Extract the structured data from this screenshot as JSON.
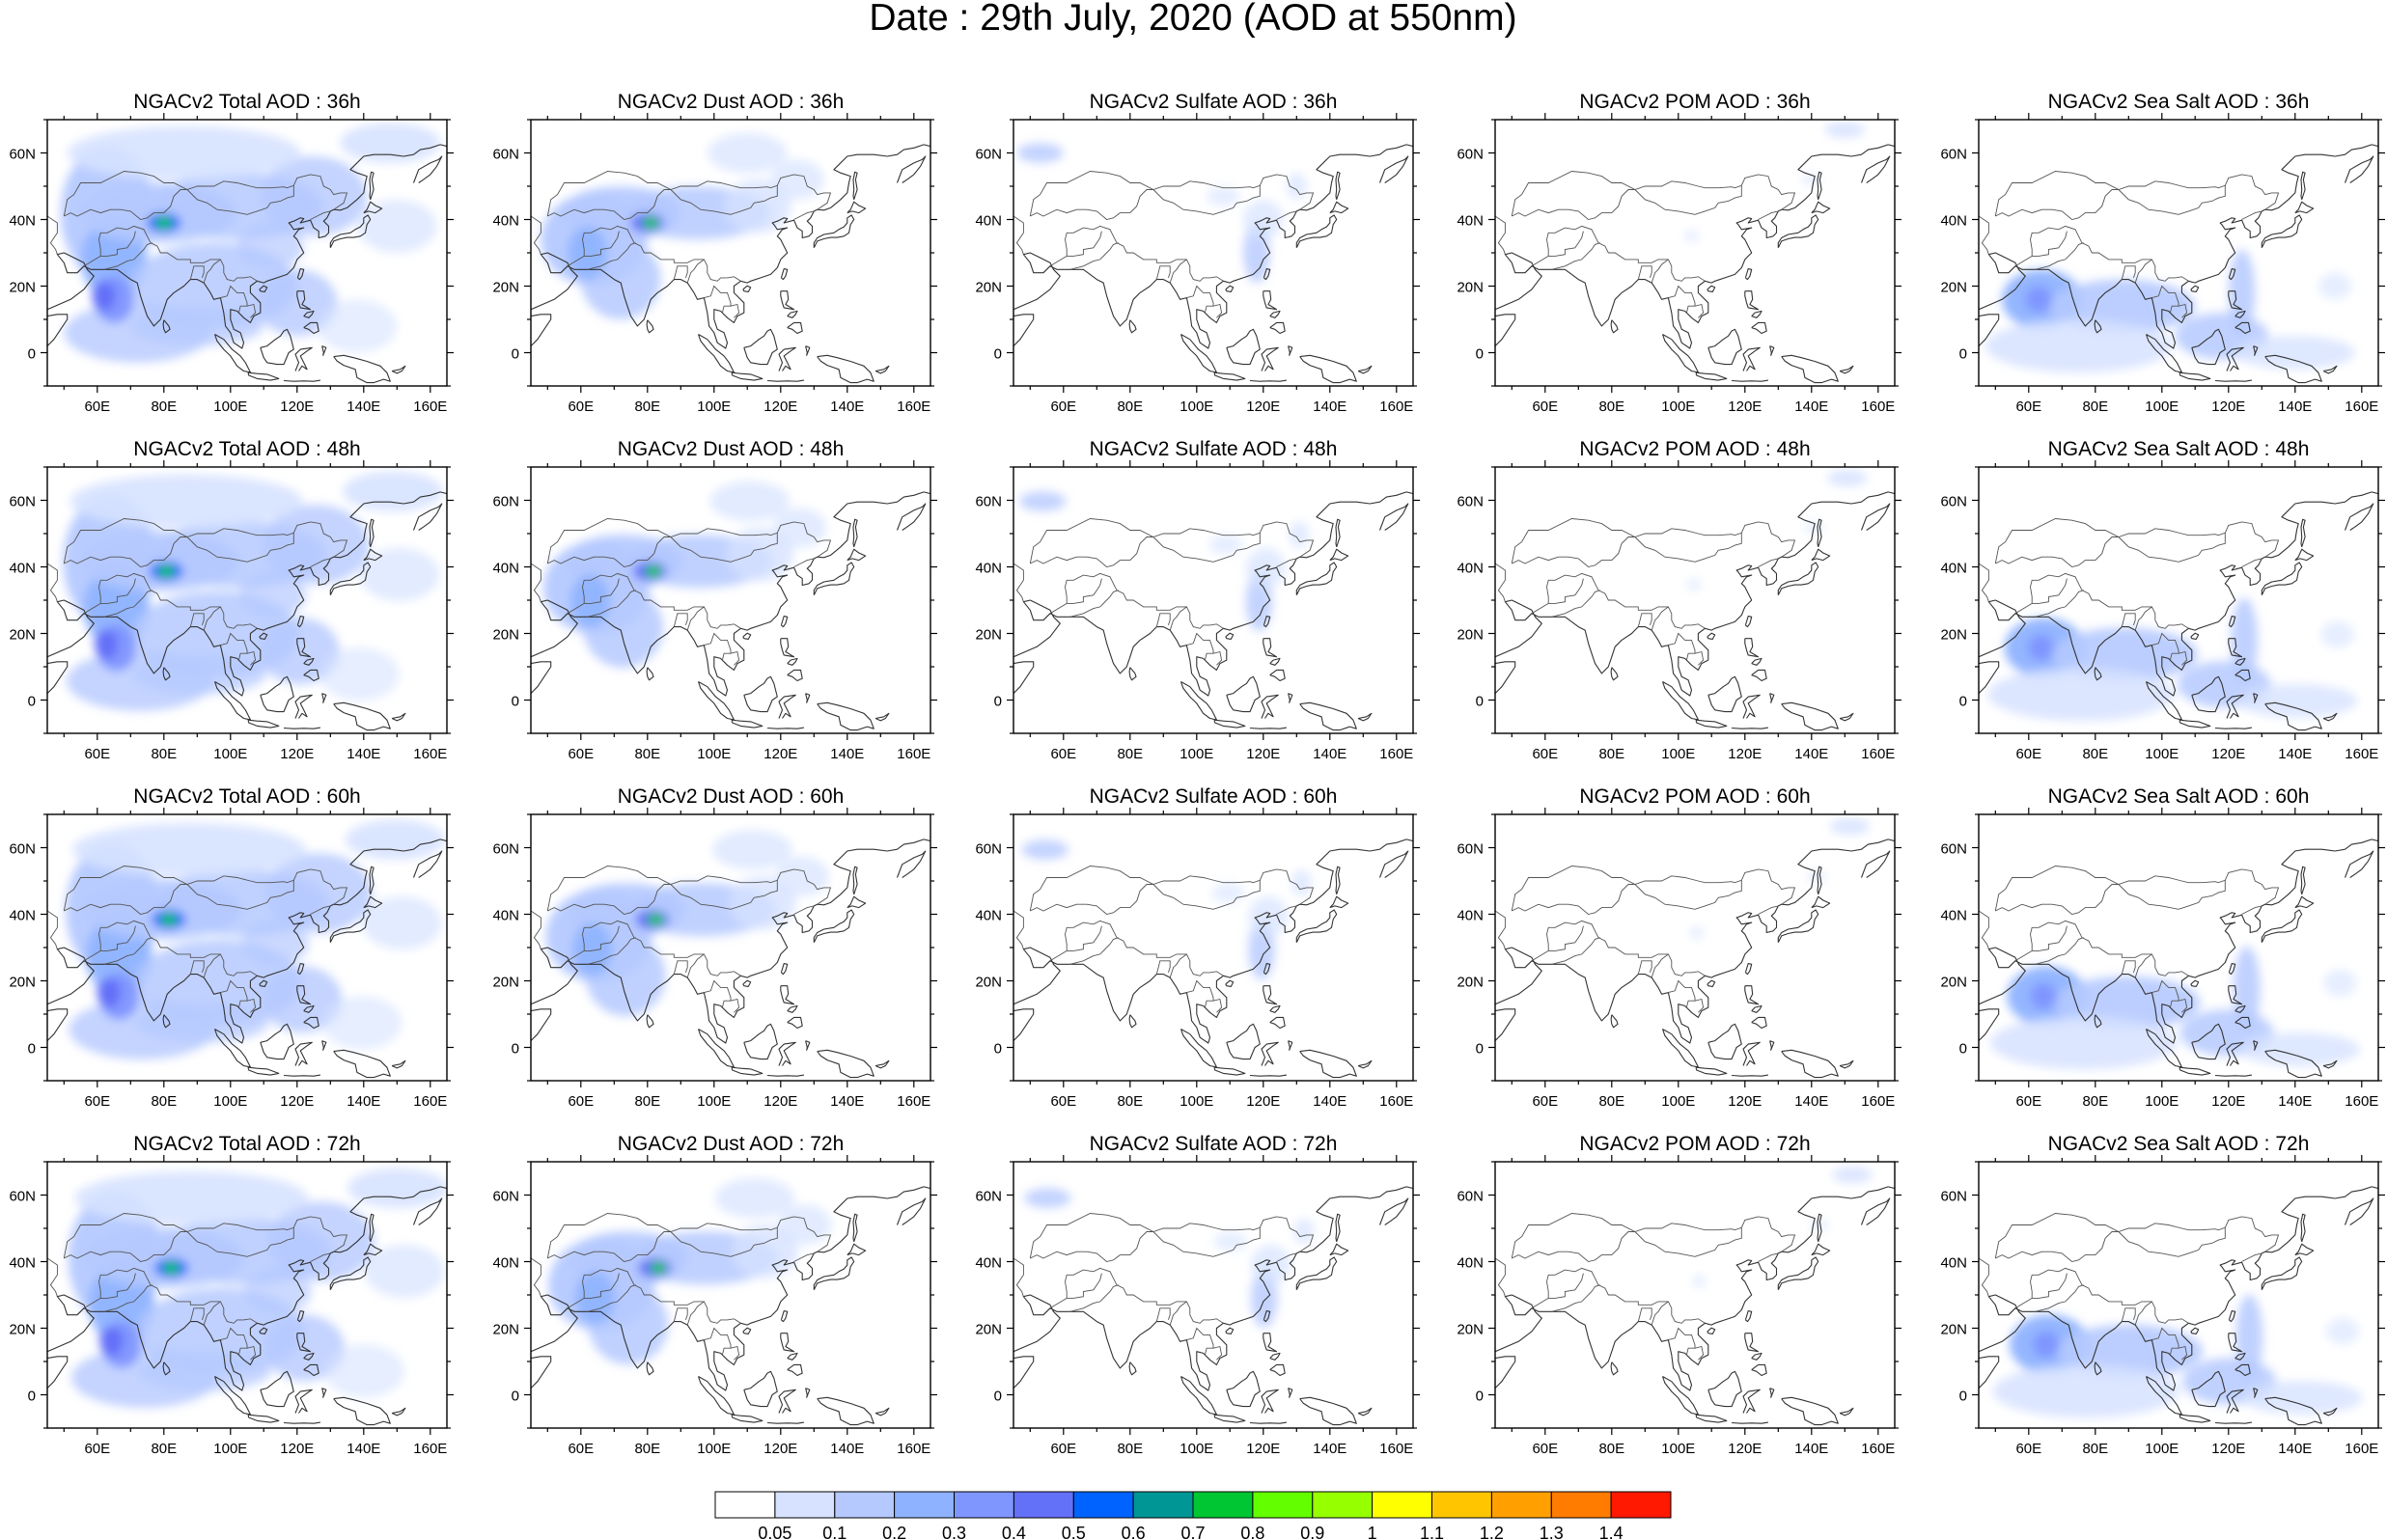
{
  "figure": {
    "title": "Date : 29th July, 2020 (AOD at 550nm)"
  },
  "axes": {
    "lat_labels": [
      "60N",
      "40N",
      "20N",
      "0"
    ],
    "lon_labels": [
      "60E",
      "80E",
      "100E",
      "120E",
      "140E",
      "160E"
    ],
    "lat_range": [
      -10,
      70
    ],
    "lon_range": [
      45,
      165
    ]
  },
  "panels": [
    [
      "NGACv2 Total AOD : 36h",
      "NGACv2 Dust AOD : 36h",
      "NGACv2 Sulfate AOD : 36h",
      "NGACv2 POM AOD : 36h",
      "NGACv2 Sea Salt AOD : 36h"
    ],
    [
      "NGACv2 Total AOD : 48h",
      "NGACv2 Dust AOD : 48h",
      "NGACv2 Sulfate AOD : 48h",
      "NGACv2 POM AOD : 48h",
      "NGACv2 Sea Salt AOD : 48h"
    ],
    [
      "NGACv2 Total AOD : 60h",
      "NGACv2 Dust AOD : 60h",
      "NGACv2 Sulfate AOD : 60h",
      "NGACv2 POM AOD : 60h",
      "NGACv2 Sea Salt AOD : 60h"
    ],
    [
      "NGACv2 Total AOD : 72h",
      "NGACv2 Dust AOD : 72h",
      "NGACv2 Sulfate AOD : 72h",
      "NGACv2 POM AOD : 72h",
      "NGACv2 Sea Salt  AOD : 72h"
    ]
  ],
  "colorbar": {
    "labels": [
      "0.05",
      "0.1",
      "0.2",
      "0.3",
      "0.4",
      "0.5",
      "0.6",
      "0.7",
      "0.8",
      "0.9",
      "1",
      "1.1",
      "1.2",
      "1.3",
      "1.4"
    ],
    "colors": [
      "#ffffff",
      "#d6e2ff",
      "#b5c9ff",
      "#8eb2ff",
      "#7f96ff",
      "#6370f8",
      "#0063ff",
      "#009696",
      "#00c633",
      "#63ff00",
      "#96ff00",
      "#ffff00",
      "#ffc600",
      "#ffa000",
      "#ff7c00",
      "#ff1900"
    ]
  }
}
